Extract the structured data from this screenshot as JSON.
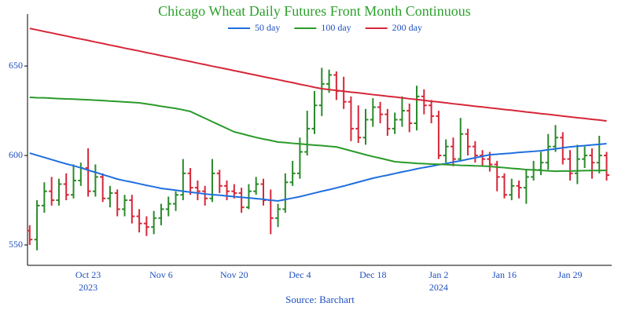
{
  "chart_data": {
    "type": "ohlc",
    "title": "Chicago Wheat Daily Futures Front Month Continuous",
    "title_color": "#2ca02c",
    "source": "Source: Barchart",
    "text_color": "#1f4fbf",
    "categories": [
      null,
      null,
      null,
      null,
      null,
      null,
      null,
      null,
      "Oct 23",
      null,
      null,
      null,
      null,
      null,
      null,
      null,
      null,
      null,
      "Nov 6",
      null,
      null,
      null,
      null,
      null,
      null,
      null,
      null,
      null,
      "Nov 20",
      null,
      null,
      null,
      null,
      null,
      null,
      null,
      null,
      "Dec 4",
      null,
      null,
      null,
      null,
      null,
      null,
      null,
      null,
      null,
      "Dec 18",
      null,
      null,
      null,
      null,
      null,
      null,
      null,
      null,
      "Jan 2",
      null,
      null,
      null,
      null,
      null,
      null,
      null,
      null,
      "Jan 16",
      null,
      null,
      null,
      null,
      null,
      null,
      null,
      null,
      "Jan 29",
      null,
      null,
      null,
      null,
      null
    ],
    "year_labels": [
      {
        "index": 8,
        "label": "2023"
      },
      {
        "index": 56,
        "label": "2024"
      }
    ],
    "ohlc": {
      "open": [
        558,
        553,
        572,
        580,
        575,
        584,
        578,
        586,
        593,
        580,
        588,
        576,
        579,
        570,
        575,
        566,
        562,
        560,
        565,
        570,
        573,
        578,
        590,
        582,
        580,
        576,
        590,
        583,
        580,
        579,
        571,
        580,
        584,
        575,
        565,
        570,
        585,
        590,
        602,
        615,
        628,
        640,
        645,
        636,
        630,
        615,
        610,
        620,
        627,
        623,
        615,
        620,
        625,
        618,
        633,
        628,
        622,
        600,
        605,
        598,
        612,
        605,
        600,
        598,
        595,
        588,
        578,
        583,
        582,
        588,
        592,
        596,
        605,
        610,
        598,
        590,
        598,
        600,
        596,
        600
      ],
      "high": [
        561,
        575,
        585,
        588,
        587,
        590,
        595,
        596,
        604,
        595,
        590,
        583,
        581,
        578,
        578,
        570,
        566,
        569,
        573,
        577,
        580,
        598,
        593,
        586,
        583,
        598,
        592,
        586,
        584,
        582,
        584,
        588,
        587,
        581,
        573,
        590,
        597,
        610,
        625,
        636,
        649,
        648,
        647,
        644,
        633,
        628,
        626,
        632,
        630,
        626,
        624,
        633,
        629,
        639,
        637,
        631,
        625,
        609,
        610,
        621,
        615,
        608,
        603,
        602,
        597,
        590,
        587,
        586,
        592,
        597,
        602,
        612,
        617,
        613,
        603,
        606,
        605,
        604,
        611,
        602
      ],
      "low": [
        550,
        547,
        568,
        572,
        572,
        575,
        576,
        583,
        577,
        577,
        574,
        571,
        566,
        566,
        562,
        557,
        555,
        556,
        561,
        566,
        569,
        575,
        578,
        575,
        572,
        574,
        579,
        575,
        576,
        568,
        570,
        578,
        572,
        556,
        560,
        568,
        583,
        587,
        600,
        612,
        622,
        635,
        631,
        626,
        608,
        607,
        606,
        616,
        618,
        611,
        612,
        616,
        613,
        614,
        623,
        618,
        598,
        596,
        594,
        597,
        600,
        596,
        594,
        591,
        580,
        576,
        575,
        576,
        573,
        586,
        589,
        592,
        602,
        595,
        586,
        584,
        593,
        587,
        590,
        586
      ],
      "close": [
        553,
        572,
        580,
        575,
        584,
        578,
        586,
        593,
        580,
        588,
        576,
        579,
        570,
        575,
        566,
        562,
        560,
        565,
        570,
        573,
        578,
        590,
        582,
        580,
        576,
        590,
        583,
        580,
        579,
        571,
        580,
        584,
        575,
        565,
        570,
        585,
        590,
        602,
        615,
        628,
        640,
        645,
        636,
        630,
        615,
        610,
        620,
        627,
        623,
        615,
        620,
        625,
        618,
        633,
        628,
        622,
        600,
        605,
        598,
        612,
        605,
        600,
        598,
        595,
        588,
        578,
        583,
        582,
        588,
        592,
        596,
        605,
        610,
        598,
        590,
        598,
        600,
        596,
        600,
        589
      ]
    },
    "up_color": "#2a8a2a",
    "down_color": "#d62739",
    "series": [
      {
        "name": "50 day",
        "color": "#1f6fde",
        "values": [
          601.3,
          600.1,
          598.9,
          597.7,
          596.5,
          595.3,
          594.3,
          593.1,
          591.8,
          590.6,
          589.3,
          588.1,
          586.8,
          585.9,
          585.1,
          584.2,
          583.3,
          582.5,
          581.6,
          581.1,
          580.6,
          580.0,
          579.5,
          579.0,
          578.5,
          578.1,
          577.8,
          577.4,
          577.0,
          576.6,
          576.3,
          575.9,
          575.5,
          575.0,
          574.6,
          575.4,
          576.2,
          577.0,
          578.0,
          579.0,
          580.0,
          580.9,
          581.9,
          582.9,
          584.0,
          585.1,
          586.2,
          587.3,
          588.2,
          589.0,
          589.9,
          590.8,
          591.6,
          592.5,
          593.3,
          594.0,
          594.8,
          595.5,
          596.3,
          597.0,
          597.9,
          598.7,
          599.6,
          600.4,
          600.7,
          601.0,
          601.3,
          601.7,
          602.0,
          602.3,
          602.6,
          603.2,
          603.7,
          604.3,
          604.8,
          605.2,
          605.5,
          605.9,
          606.2,
          606.6
        ]
      },
      {
        "name": "100 day",
        "color": "#2a9a2a",
        "values": [
          632.5,
          632.3,
          632.2,
          632.0,
          631.8,
          631.6,
          631.5,
          631.3,
          631.1,
          630.9,
          630.7,
          630.4,
          630.2,
          629.9,
          629.7,
          629.4,
          628.8,
          628.2,
          627.5,
          626.9,
          626.3,
          625.5,
          624.6,
          622.7,
          620.8,
          618.9,
          617.0,
          615.1,
          613.2,
          612.2,
          611.1,
          610.1,
          609.2,
          608.4,
          607.5,
          607.2,
          606.8,
          606.5,
          606.1,
          605.8,
          605.5,
          605.1,
          604.8,
          603.7,
          602.6,
          601.5,
          600.4,
          599.4,
          598.5,
          597.5,
          596.5,
          596.2,
          595.9,
          595.6,
          595.4,
          595.2,
          595.1,
          594.9,
          594.7,
          594.5,
          594.4,
          594.2,
          594.1,
          593.9,
          593.5,
          593.2,
          592.8,
          592.5,
          592.1,
          591.9,
          591.7,
          591.4,
          591.2,
          591.3,
          591.3,
          591.4,
          591.5,
          591.6,
          591.6,
          591.7
        ]
      },
      {
        "name": "200 day",
        "color": "#d62739",
        "values": [
          671.0,
          670.2,
          669.3,
          668.5,
          667.6,
          666.8,
          665.9,
          665.1,
          664.3,
          663.4,
          662.6,
          661.7,
          660.9,
          660.0,
          659.2,
          658.4,
          657.5,
          656.7,
          655.8,
          655.0,
          654.2,
          653.3,
          652.5,
          651.6,
          650.8,
          649.9,
          649.1,
          648.3,
          647.4,
          646.6,
          645.7,
          644.9,
          644.0,
          643.2,
          642.4,
          641.5,
          640.7,
          639.8,
          639.0,
          638.1,
          637.3,
          636.8,
          636.4,
          635.9,
          635.4,
          635.0,
          634.5,
          634.0,
          633.6,
          633.1,
          632.7,
          632.2,
          631.7,
          631.3,
          630.8,
          630.3,
          629.9,
          629.4,
          628.9,
          628.5,
          628.0,
          627.5,
          627.1,
          626.6,
          626.2,
          625.7,
          625.3,
          624.8,
          624.3,
          623.9,
          623.4,
          623.0,
          622.5,
          622.0,
          621.6,
          621.1,
          620.7,
          620.2,
          619.8,
          619.3
        ]
      }
    ],
    "xlim": [
      -0.3,
      79.7
    ],
    "ylim": [
      538.6,
      679
    ],
    "yticks": [
      550,
      600,
      650
    ],
    "grid": false
  }
}
